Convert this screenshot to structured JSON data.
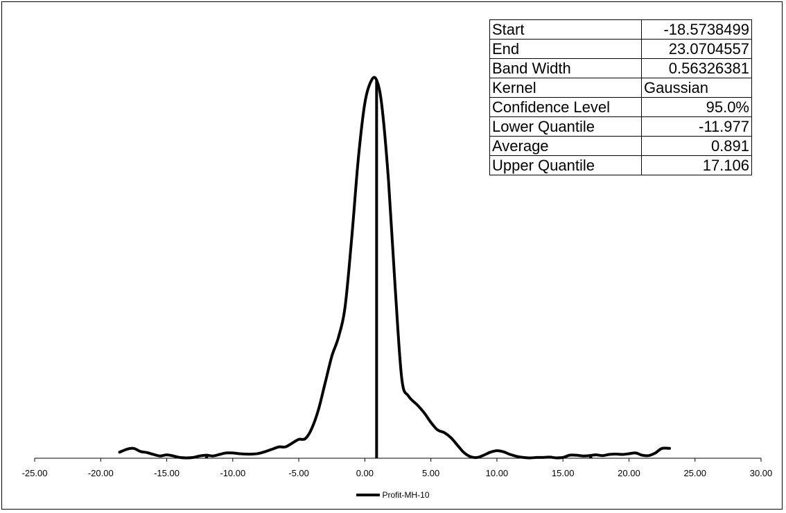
{
  "stats": [
    {
      "label": "Start",
      "value": "-18.5738499",
      "align": "right"
    },
    {
      "label": "End",
      "value": "23.0704557",
      "align": "right"
    },
    {
      "label": "Band Width",
      "value": "0.56326381",
      "align": "right"
    },
    {
      "label": "Kernel",
      "value": "Gaussian",
      "align": "left"
    },
    {
      "label": "Confidence Level",
      "value": "95.0%",
      "align": "right"
    },
    {
      "label": "Lower Quantile",
      "value": "-11.977",
      "align": "right"
    },
    {
      "label": "Average",
      "value": "0.891",
      "align": "right"
    },
    {
      "label": "Upper Quantile",
      "value": "17.106",
      "align": "right"
    }
  ],
  "chart_data": {
    "type": "line",
    "title": "",
    "xlabel": "",
    "ylabel": "",
    "xlim": [
      -25,
      30
    ],
    "ylim": [
      0,
      1
    ],
    "x_ticks": [
      "-25.00",
      "-20.00",
      "-15.00",
      "-10.00",
      "-5.00",
      "0.00",
      "5.00",
      "10.00",
      "15.00",
      "20.00",
      "25.00",
      "30.00"
    ],
    "x_tick_values": [
      -25,
      -20,
      -15,
      -10,
      -5,
      0,
      5,
      10,
      15,
      20,
      25,
      30
    ],
    "legend": {
      "position": "bottom",
      "entries": [
        "Profit-MH-10"
      ]
    },
    "grid": false,
    "line_color": "#000000",
    "series": [
      {
        "name": "Profit-MH-10",
        "x": [
          -18.57,
          -18.0,
          -17.5,
          -17.0,
          -16.5,
          -16.0,
          -15.5,
          -15.0,
          -14.5,
          -14.0,
          -13.5,
          -13.0,
          -12.5,
          -12.0,
          -11.5,
          -11.0,
          -10.5,
          -10.0,
          -9.5,
          -9.0,
          -8.5,
          -8.0,
          -7.5,
          -7.0,
          -6.5,
          -6.0,
          -5.5,
          -5.0,
          -4.5,
          -4.0,
          -3.5,
          -3.0,
          -2.5,
          -2.0,
          -1.5,
          -1.0,
          -0.5,
          0.0,
          0.5,
          0.9,
          1.3,
          1.8,
          2.3,
          2.8,
          3.3,
          4.0,
          4.5,
          5.0,
          5.5,
          6.0,
          6.5,
          7.0,
          7.5,
          8.0,
          8.5,
          9.0,
          9.5,
          10.0,
          10.5,
          11.0,
          11.5,
          12.0,
          12.5,
          13.0,
          13.5,
          14.0,
          14.5,
          15.0,
          15.5,
          16.0,
          16.5,
          17.0,
          17.5,
          18.0,
          18.5,
          19.0,
          19.5,
          20.0,
          20.5,
          21.0,
          21.5,
          22.0,
          22.5,
          23.07
        ],
        "y": [
          0.016,
          0.024,
          0.026,
          0.018,
          0.015,
          0.01,
          0.006,
          0.009,
          0.006,
          0.002,
          0.001,
          0.002,
          0.006,
          0.008,
          0.006,
          0.01,
          0.014,
          0.014,
          0.012,
          0.011,
          0.011,
          0.013,
          0.018,
          0.024,
          0.03,
          0.03,
          0.04,
          0.05,
          0.052,
          0.08,
          0.13,
          0.2,
          0.27,
          0.32,
          0.4,
          0.58,
          0.79,
          0.94,
          1.0,
          1.0,
          0.93,
          0.73,
          0.45,
          0.21,
          0.165,
          0.14,
          0.12,
          0.095,
          0.075,
          0.068,
          0.055,
          0.035,
          0.015,
          0.004,
          0.002,
          0.008,
          0.016,
          0.02,
          0.017,
          0.01,
          0.005,
          0.002,
          0.001,
          0.002,
          0.002,
          0.003,
          0.001,
          0.002,
          0.008,
          0.008,
          0.006,
          0.007,
          0.009,
          0.007,
          0.01,
          0.011,
          0.01,
          0.012,
          0.014,
          0.008,
          0.007,
          0.014,
          0.026,
          0.026
        ]
      }
    ],
    "markers": [
      {
        "name": "Average",
        "x": 0.891,
        "y": 1.0,
        "style": "vertical-line"
      },
      {
        "name": "Lower Quantile",
        "x": -11.977,
        "style": "tick"
      },
      {
        "name": "Upper Quantile",
        "x": 17.106,
        "style": "tick"
      }
    ]
  }
}
